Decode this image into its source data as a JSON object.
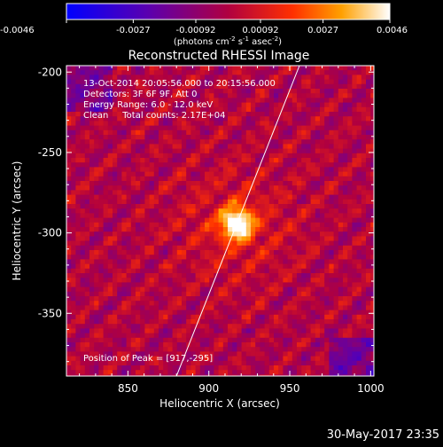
{
  "colorbar": {
    "tick_labels": [
      "-0.0046",
      "-0.0027",
      "-0.00092",
      "0.00092",
      "0.0027",
      "0.0046"
    ],
    "tick_values": [
      -0.0046,
      -0.0027,
      -0.00092,
      0.00092,
      0.0027,
      0.0046
    ],
    "range": [
      -0.0046,
      0.0046
    ],
    "colormap": "blue-purple-red-orange-yellow-white",
    "unit_prefix": "(photons cm",
    "unit_exp1": "-2",
    "unit_mid": " s",
    "unit_exp2": "-1",
    "unit_mid2": " asec",
    "unit_exp3": "-2",
    "unit_suffix": ")"
  },
  "chart_data": {
    "type": "heatmap",
    "title": "Reconstructed RHESSI Image",
    "xlabel": "Heliocentric X (arcsec)",
    "ylabel": "Heliocentric Y (arcsec)",
    "xlim": [
      812,
      1002
    ],
    "ylim": [
      -389,
      -196
    ],
    "x_ticks": [
      850,
      900,
      950,
      1000
    ],
    "x_tick_labels": [
      "850",
      "900",
      "950",
      "1000"
    ],
    "y_ticks": [
      -200,
      -250,
      -300,
      -350
    ],
    "y_tick_labels": [
      "-200",
      "-250",
      "-300",
      "-350"
    ],
    "peak": [
      917,
      -295
    ],
    "limb_line": {
      "x": [
        880,
        956
      ],
      "y": [
        -389,
        -196
      ]
    },
    "annotations": [
      "13-Oct-2014 20:05:56.000 to 20:15:56.000",
      "Detectors: 3F 6F 9F, Att 0",
      "Energy Range: 6.0 - 12.0 keV",
      "Clean     Total counts: 2.17E+04"
    ],
    "peak_label": "Position of Peak = [917,-295]"
  },
  "footer": {
    "date": "30-May-2017 23:35"
  }
}
